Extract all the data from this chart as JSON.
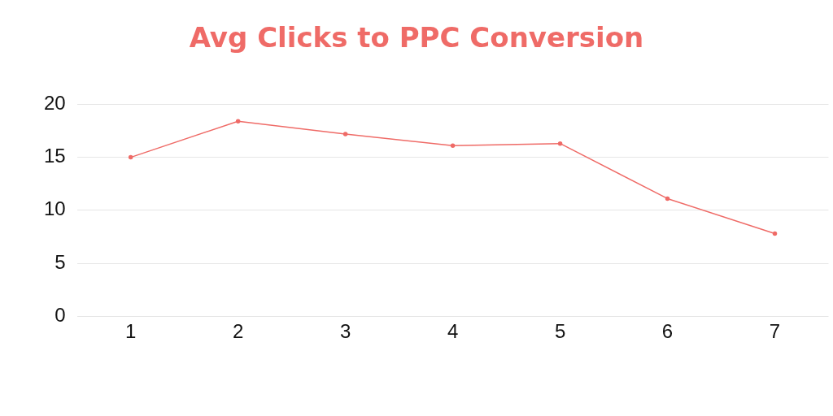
{
  "chart_data": {
    "type": "line",
    "title": "Avg Clicks to PPC Conversion",
    "categories": [
      "1",
      "2",
      "3",
      "4",
      "5",
      "6",
      "7"
    ],
    "series": [
      {
        "color": "#ef6b67",
        "values": [
          15.0,
          18.4,
          17.2,
          16.1,
          16.3,
          11.1,
          7.8
        ]
      }
    ],
    "ylim": [
      0,
      20
    ],
    "yticks": [
      0,
      5,
      10,
      15,
      20
    ],
    "grid": "y",
    "legend": false,
    "marker": "circle",
    "line_style": "solid"
  }
}
